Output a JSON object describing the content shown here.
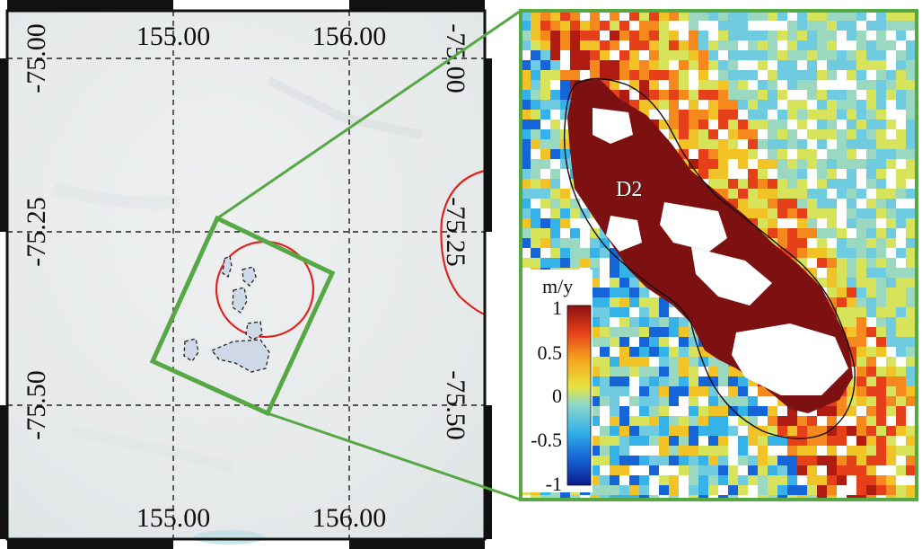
{
  "left_map": {
    "lon_labels_top": [
      "155.00",
      "156.00"
    ],
    "lon_labels_bottom": [
      "155.00",
      "156.00"
    ],
    "lat_labels_left": [
      "-75.00",
      "-75.25",
      "-75.50"
    ],
    "lat_labels_right": [
      "-75.00",
      "-75.25",
      "-75.50"
    ],
    "colors": {
      "background": "#e8ebeb",
      "contour": "#e0221e",
      "inset_box": "#56a845",
      "gridline": "#222222",
      "frame": "#111111"
    }
  },
  "inset_map": {
    "feature_label": "D2",
    "colorbar": {
      "unit": "m/y",
      "min": -1,
      "max": 1,
      "ticks": [
        "1",
        "0.5",
        "0",
        "-0.5",
        "-1"
      ],
      "colormap": "jet"
    },
    "colors": {
      "saturated": "#7d1010",
      "outline": "#111111",
      "frame": "#56a845"
    }
  }
}
